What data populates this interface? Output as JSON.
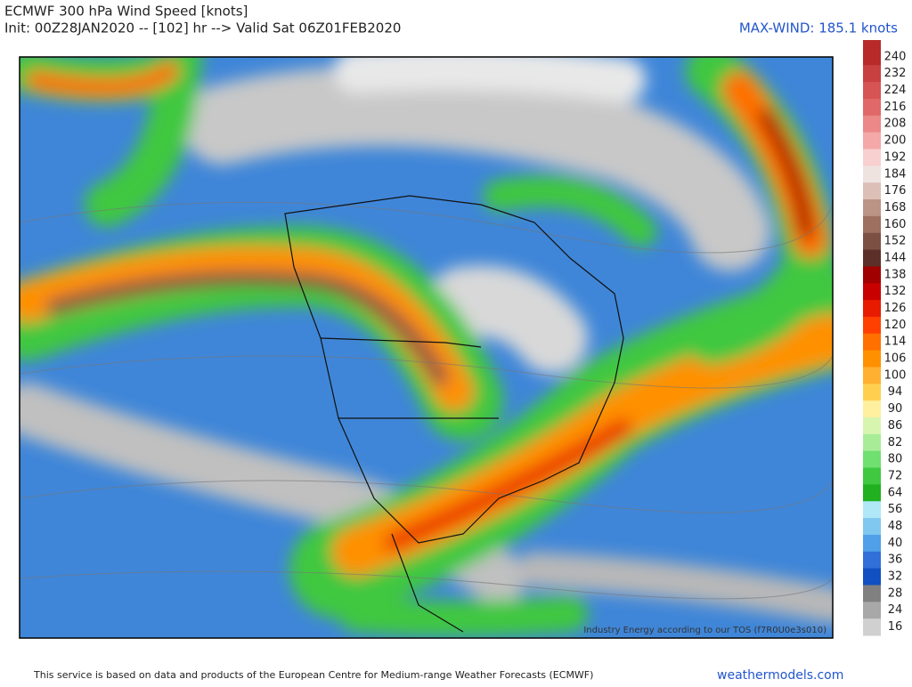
{
  "header": {
    "title": "ECMWF 300 hPa Wind Speed [knots]",
    "subtitle": "Init: 00Z28JAN2020 -- [102] hr --> Valid Sat 06Z01FEB2020",
    "max_wind": "MAX-WIND: 185.1 knots"
  },
  "map": {
    "watermark": "Industry Energy according to our TOS (f7R0U0e3s010)"
  },
  "colorbar": {
    "labels": [
      "240",
      "232",
      "224",
      "216",
      "208",
      "200",
      "192",
      "184",
      "176",
      "168",
      "160",
      "152",
      "144",
      "138",
      "132",
      "126",
      "120",
      "114",
      "106",
      "100",
      "94",
      "90",
      "86",
      "82",
      "80",
      "72",
      "64",
      "56",
      "48",
      "40",
      "36",
      "32",
      "28",
      "24",
      "16"
    ],
    "colors": [
      "#b82a2a",
      "#c94040",
      "#d65454",
      "#e06868",
      "#eb8888",
      "#f4a8a8",
      "#f8d0d0",
      "#efe3e0",
      "#dcc0b8",
      "#bb9486",
      "#9e7060",
      "#7d5044",
      "#5c3028",
      "#a00000",
      "#c80000",
      "#e81a00",
      "#ff4000",
      "#ff7000",
      "#ff9000",
      "#ffb030",
      "#ffd050",
      "#fff0a0",
      "#d8f5b0",
      "#a8ec98",
      "#70e070",
      "#40c840",
      "#20b020",
      "#b0e8f8",
      "#80c8f0",
      "#50a0e8",
      "#3070d8",
      "#1050c0",
      "#808080",
      "#a8a8a8",
      "#d0d0d0"
    ]
  },
  "footer": {
    "credit": "This service is based on data and products of the European Centre for Medium-range Weather Forecasts (ECMWF)",
    "site": "weathermodels.com"
  }
}
